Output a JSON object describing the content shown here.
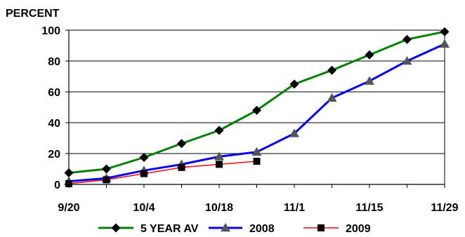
{
  "chart_data": {
    "type": "line",
    "ylabel": "PERCENT",
    "xlabel": "",
    "ylim": [
      0,
      100
    ],
    "yticks": [
      0,
      20,
      40,
      60,
      80,
      100
    ],
    "x_tick_labels": [
      "9/20",
      "10/4",
      "10/18",
      "11/1",
      "11/15",
      "11/29"
    ],
    "grid": "horizontal",
    "legend_position": "bottom",
    "series": [
      {
        "name": "5 YEAR AV",
        "color": "#008000",
        "marker": "diamond",
        "values": [
          7.5,
          10,
          17.5,
          26.5,
          35,
          48,
          65,
          74,
          84,
          94,
          99
        ]
      },
      {
        "name": "2008",
        "color": "#0000FF",
        "marker": "triangle",
        "values": [
          2,
          4,
          9,
          13,
          18,
          21,
          33,
          56,
          67,
          80,
          91
        ]
      },
      {
        "name": "2009",
        "color": "#FF0000",
        "marker": "square",
        "values": [
          0.5,
          3,
          7,
          11,
          13,
          15
        ]
      }
    ]
  }
}
